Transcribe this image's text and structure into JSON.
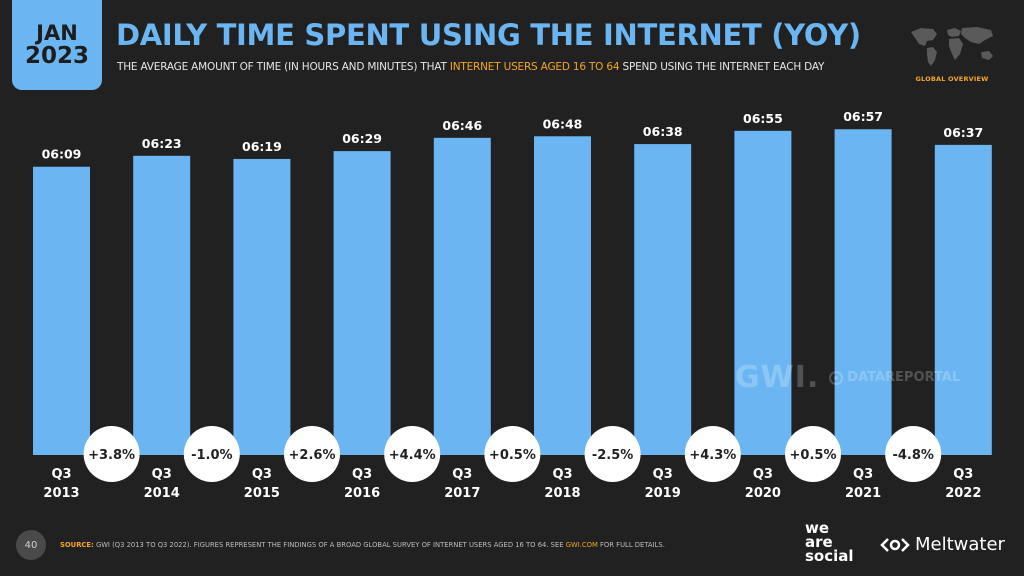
{
  "header": {
    "month": "JAN",
    "year": "2023",
    "title": "DAILY TIME SPENT USING THE INTERNET (YOY)",
    "subtitle_pre": "THE AVERAGE AMOUNT OF TIME (IN HOURS AND MINUTES) THAT ",
    "subtitle_highlight": "INTERNET USERS AGED 16 TO 64",
    "subtitle_post": " SPEND USING THE INTERNET EACH DAY",
    "section_label": "GLOBAL OVERVIEW",
    "map_icon": "world-map-icon"
  },
  "chart_data": {
    "type": "bar",
    "categories": [
      [
        "Q3",
        "2013"
      ],
      [
        "Q3",
        "2014"
      ],
      [
        "Q3",
        "2015"
      ],
      [
        "Q3",
        "2016"
      ],
      [
        "Q3",
        "2017"
      ],
      [
        "Q3",
        "2018"
      ],
      [
        "Q3",
        "2019"
      ],
      [
        "Q3",
        "2020"
      ],
      [
        "Q3",
        "2021"
      ],
      [
        "Q3",
        "2022"
      ]
    ],
    "value_labels": [
      "06:09",
      "06:23",
      "06:19",
      "06:29",
      "06:46",
      "06:48",
      "06:38",
      "06:55",
      "06:57",
      "06:37"
    ],
    "values_minutes": [
      369,
      383,
      379,
      389,
      406,
      408,
      398,
      415,
      417,
      397
    ],
    "changes": [
      "+3.8%",
      "-1.0%",
      "+2.6%",
      "+4.4%",
      "+0.5%",
      "-2.5%",
      "+4.3%",
      "+0.5%",
      "-4.8%"
    ],
    "ylim": [
      0,
      425
    ],
    "bar_color": "#6bb6f2",
    "label_color": "#ffffff",
    "badge_color": "#ffffff"
  },
  "watermark": {
    "gwi": "GWI.",
    "datareportal": "DATAREPORTAL"
  },
  "footer": {
    "page_number": "40",
    "source_label": "SOURCE:",
    "source_text": " GWI (Q3 2013 TO Q3 2022). FIGURES REPRESENT THE FINDINGS OF A BROAD GLOBAL SURVEY OF INTERNET USERS AGED 16 TO 64. SEE ",
    "source_link": "GWI.COM",
    "source_tail": " FOR FULL DETAILS.",
    "brand1_line1": "we",
    "brand1_line2": "are",
    "brand1_line3": "social",
    "brand2": "Meltwater"
  },
  "colors": {
    "accent": "#6bb6f2",
    "highlight": "#f5a623",
    "background": "#212121"
  }
}
